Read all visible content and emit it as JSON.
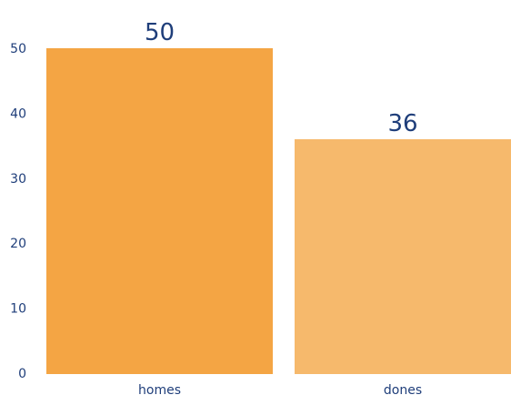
{
  "chart_data": {
    "type": "bar",
    "categories": [
      "homes",
      "dones"
    ],
    "values": [
      50,
      36
    ],
    "data_labels": [
      "50",
      "36"
    ],
    "y_ticks": [
      {
        "value": 0,
        "label": "0"
      },
      {
        "value": 10,
        "label": "10"
      },
      {
        "value": 20,
        "label": "20"
      },
      {
        "value": 30,
        "label": "30"
      },
      {
        "value": 40,
        "label": "40"
      },
      {
        "value": 50,
        "label": "50"
      }
    ],
    "ylim": [
      0,
      50
    ],
    "grid": false,
    "legend": "none",
    "colors": {
      "bars": [
        "#F4A544",
        "#F6B96C"
      ],
      "text": "#1F3E7A"
    }
  }
}
